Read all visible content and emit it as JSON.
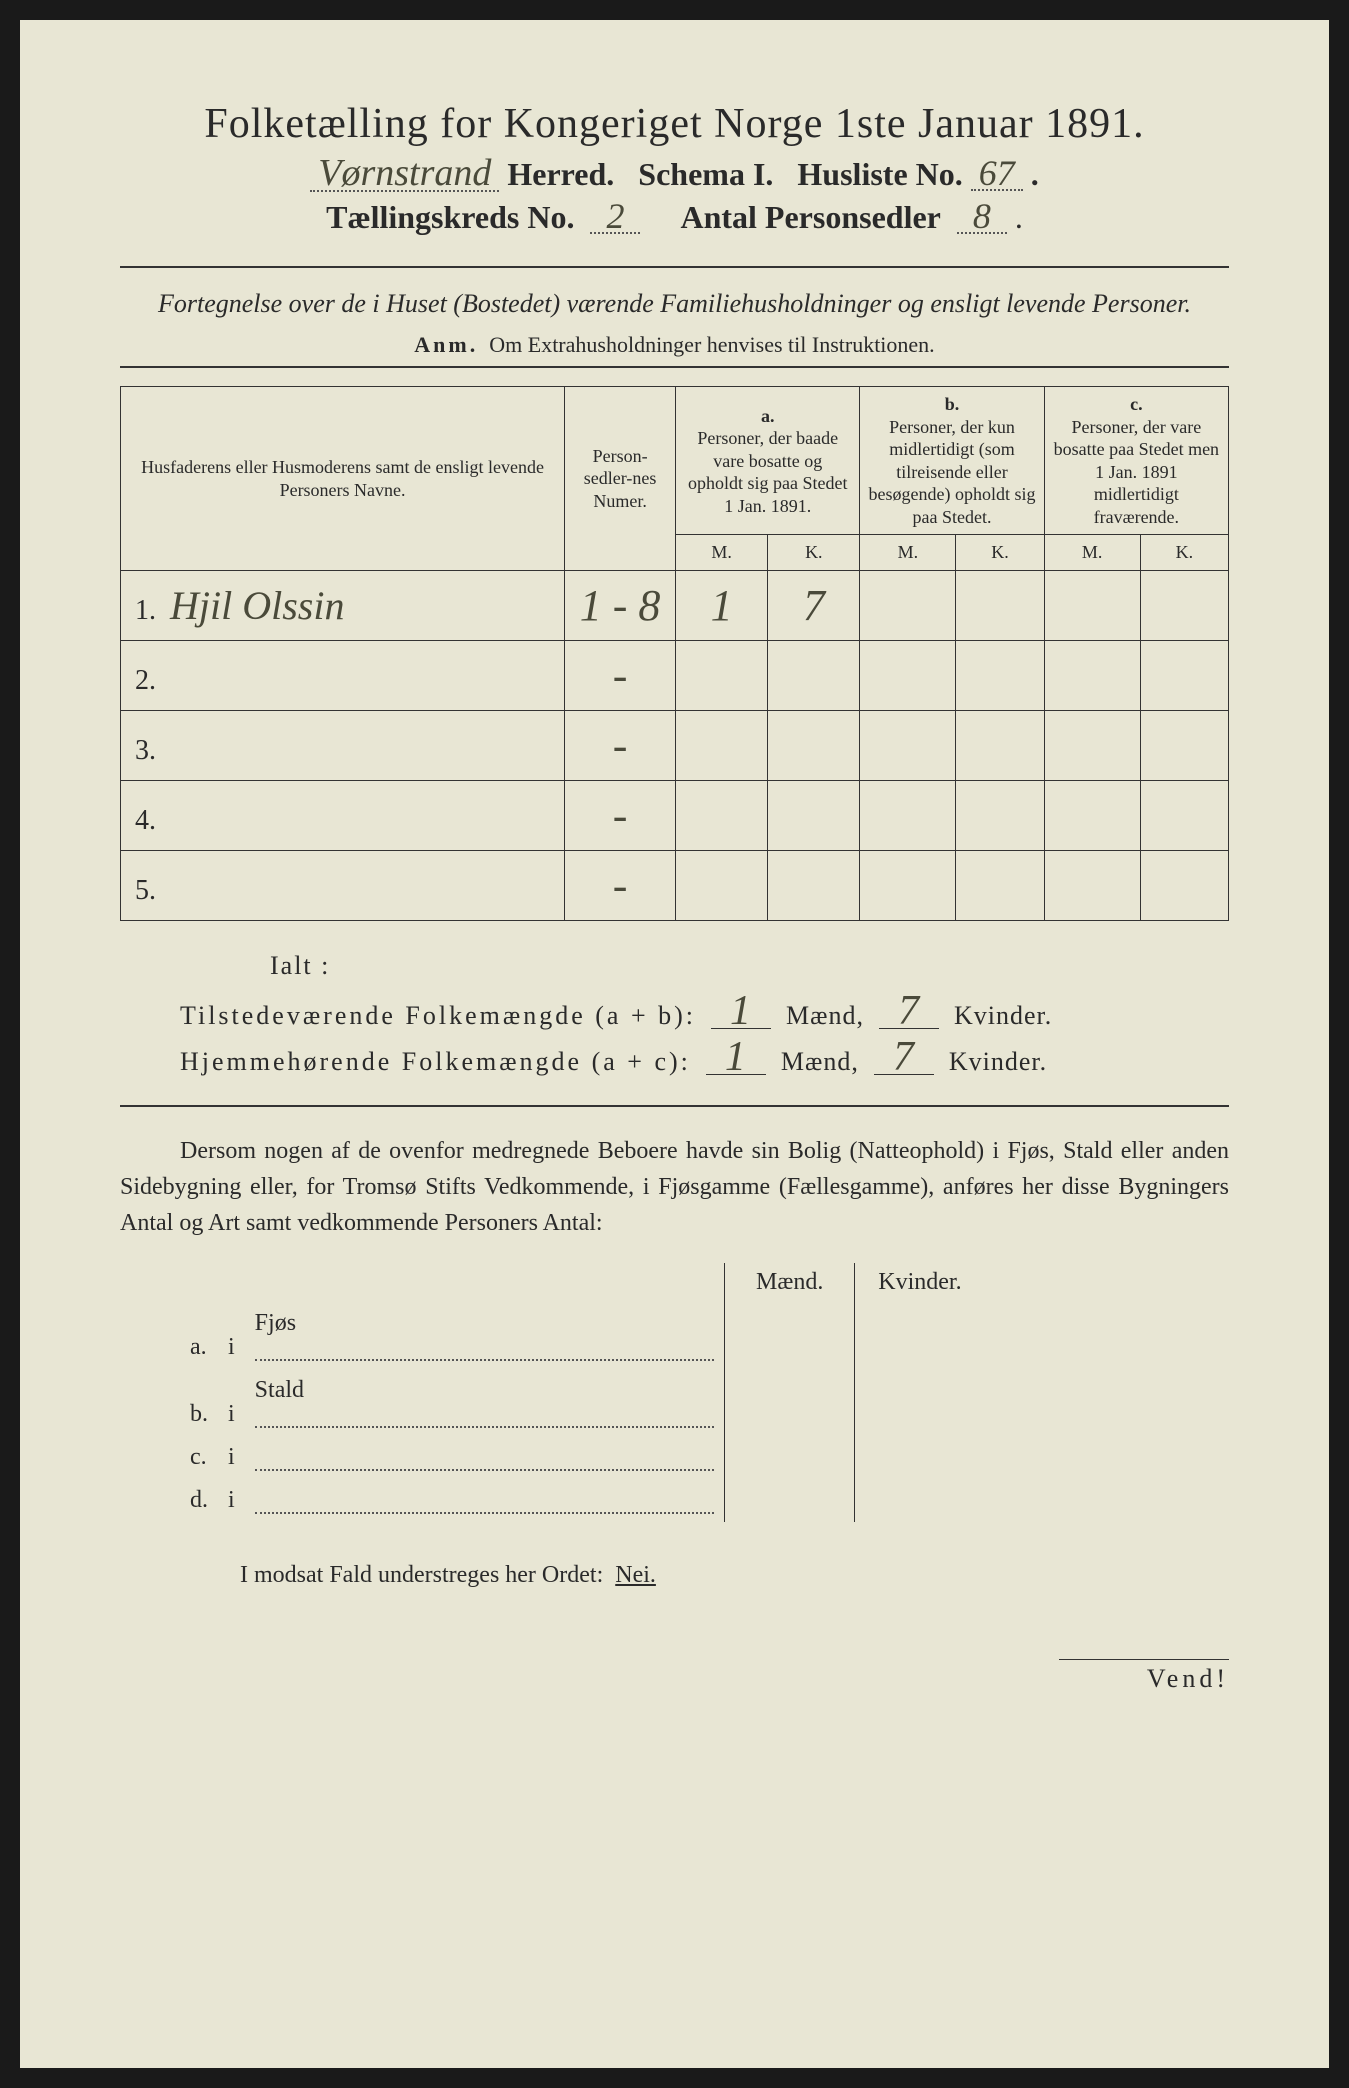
{
  "header": {
    "title": "Folketælling for Kongeriget Norge 1ste Januar 1891.",
    "herred_hw": "Vørnstrand",
    "herred_label": "Herred.",
    "schema": "Schema I.",
    "husliste_label": "Husliste No.",
    "husliste_no": "67",
    "kreds_label": "Tællingskreds No.",
    "kreds_no": "2",
    "antal_label": "Antal Personsedler",
    "antal_no": "8"
  },
  "subtitle": "Fortegnelse over de i Huset (Bostedet) værende Familiehusholdninger og ensligt levende Personer.",
  "anm": {
    "label": "Anm.",
    "text": "Om Extrahusholdninger henvises til Instruktionen."
  },
  "table": {
    "col_name": "Husfaderens eller Husmoderens samt de ensligt levende Personers Navne.",
    "col_num": "Person-sedler-nes Numer.",
    "col_a_label": "a.",
    "col_a": "Personer, der baade vare bosatte og opholdt sig paa Stedet 1 Jan. 1891.",
    "col_b_label": "b.",
    "col_b": "Personer, der kun midlertidigt (som tilreisende eller besøgende) opholdt sig paa Stedet.",
    "col_c_label": "c.",
    "col_c": "Personer, der vare bosatte paa Stedet men 1 Jan. 1891 midlertidigt fraværende.",
    "M": "M.",
    "K": "K.",
    "rows": [
      {
        "n": "1.",
        "name": "Hjil Olssin",
        "num": "1 - 8",
        "aM": "1",
        "aK": "7",
        "bM": "",
        "bK": "",
        "cM": "",
        "cK": ""
      },
      {
        "n": "2.",
        "name": "",
        "num": "-",
        "aM": "",
        "aK": "",
        "bM": "",
        "bK": "",
        "cM": "",
        "cK": ""
      },
      {
        "n": "3.",
        "name": "",
        "num": "-",
        "aM": "",
        "aK": "",
        "bM": "",
        "bK": "",
        "cM": "",
        "cK": ""
      },
      {
        "n": "4.",
        "name": "",
        "num": "-",
        "aM": "",
        "aK": "",
        "bM": "",
        "bK": "",
        "cM": "",
        "cK": ""
      },
      {
        "n": "5.",
        "name": "",
        "num": "-",
        "aM": "",
        "aK": "",
        "bM": "",
        "bK": "",
        "cM": "",
        "cK": ""
      }
    ]
  },
  "totals": {
    "ialt": "Ialt :",
    "line1_label": "Tilstedeværende Folkemængde (a + b):",
    "line2_label": "Hjemmehørende Folkemængde (a + c):",
    "maend": "Mænd,",
    "kvinder": "Kvinder.",
    "t_m": "1",
    "t_k": "7",
    "h_m": "1",
    "h_k": "7"
  },
  "dersom": "Dersom nogen af de ovenfor medregnede Beboere havde sin Bolig (Natteophold) i Fjøs, Stald eller anden Sidebygning eller, for Tromsø Stifts Vedkommende, i Fjøsgamme (Fællesgamme), anføres her disse Bygningers Antal og Art samt vedkommende Personers Antal:",
  "bldg": {
    "maend": "Mænd.",
    "kvinder": "Kvinder.",
    "rows": [
      {
        "k": "a.",
        "i": "i",
        "label": "Fjøs"
      },
      {
        "k": "b.",
        "i": "i",
        "label": "Stald"
      },
      {
        "k": "c.",
        "i": "i",
        "label": ""
      },
      {
        "k": "d.",
        "i": "i",
        "label": ""
      }
    ]
  },
  "nei": {
    "pre": "I modsat Fald understreges her Ordet:",
    "word": "Nei."
  },
  "vend": "Vend!",
  "colors": {
    "paper": "#e8e6d4",
    "ink": "#2a2a2a",
    "handwriting": "#4a4a3a",
    "border": "#333333"
  }
}
